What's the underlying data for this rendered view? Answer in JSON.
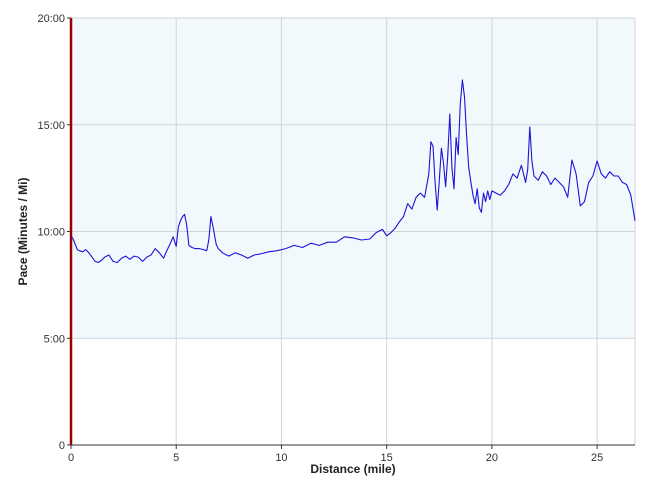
{
  "chart_data": {
    "type": "line",
    "title": "",
    "xlabel": "Distance (mile)",
    "ylabel": "Pace (Minutes / Mi)",
    "xlim": [
      0,
      26.8
    ],
    "ylim": [
      0,
      20
    ],
    "x_ticks": [
      0,
      5,
      10,
      15,
      20,
      25
    ],
    "x_tick_labels": [
      "0",
      "5",
      "10",
      "15",
      "20",
      "25"
    ],
    "y_ticks": [
      0,
      5,
      10,
      15,
      20
    ],
    "y_tick_labels": [
      "0",
      "5:00",
      "10:00",
      "15:00",
      "20:00"
    ],
    "grid": true,
    "shaded_band": [
      5,
      20
    ],
    "colors": {
      "line": "#1a14d6",
      "band": "#f2f9fd",
      "grid": "#cfd4d8",
      "marker": "#990000",
      "axis": "#333333"
    },
    "series": [
      {
        "name": "",
        "x": [
          0.0,
          0.1,
          0.2,
          0.3,
          0.4,
          0.55,
          0.7,
          0.85,
          1.0,
          1.15,
          1.3,
          1.45,
          1.6,
          1.8,
          2.0,
          2.2,
          2.4,
          2.6,
          2.8,
          3.0,
          3.2,
          3.4,
          3.6,
          3.8,
          4.0,
          4.2,
          4.4,
          4.55,
          4.7,
          4.85,
          5.0,
          5.1,
          5.2,
          5.3,
          5.4,
          5.5,
          5.6,
          5.75,
          5.9,
          6.1,
          6.3,
          6.45,
          6.55,
          6.65,
          6.75,
          6.9,
          7.0,
          7.2,
          7.5,
          7.8,
          8.1,
          8.4,
          8.7,
          9.0,
          9.4,
          9.8,
          10.2,
          10.6,
          11.0,
          11.4,
          11.8,
          12.2,
          12.6,
          13.0,
          13.4,
          13.8,
          14.2,
          14.5,
          14.8,
          15.0,
          15.2,
          15.4,
          15.6,
          15.8,
          16.0,
          16.2,
          16.4,
          16.6,
          16.8,
          17.0,
          17.1,
          17.2,
          17.3,
          17.4,
          17.5,
          17.6,
          17.7,
          17.8,
          17.9,
          18.0,
          18.1,
          18.2,
          18.3,
          18.4,
          18.5,
          18.6,
          18.7,
          18.8,
          18.9,
          19.0,
          19.1,
          19.2,
          19.3,
          19.4,
          19.5,
          19.6,
          19.7,
          19.8,
          19.9,
          20.0,
          20.2,
          20.4,
          20.6,
          20.8,
          21.0,
          21.2,
          21.4,
          21.6,
          21.7,
          21.8,
          21.9,
          22.0,
          22.2,
          22.4,
          22.6,
          22.8,
          23.0,
          23.2,
          23.4,
          23.6,
          23.8,
          24.0,
          24.2,
          24.4,
          24.6,
          24.8,
          25.0,
          25.2,
          25.4,
          25.6,
          25.8,
          26.0,
          26.2,
          26.4,
          26.6,
          26.8
        ],
        "y": [
          9.8,
          9.65,
          9.4,
          9.15,
          9.1,
          9.05,
          9.15,
          9.0,
          8.8,
          8.6,
          8.55,
          8.65,
          8.8,
          8.9,
          8.6,
          8.55,
          8.75,
          8.85,
          8.7,
          8.85,
          8.8,
          8.6,
          8.8,
          8.9,
          9.2,
          9.0,
          8.75,
          9.1,
          9.4,
          9.75,
          9.3,
          10.2,
          10.5,
          10.7,
          10.8,
          10.3,
          9.35,
          9.25,
          9.2,
          9.2,
          9.15,
          9.1,
          9.6,
          10.7,
          10.2,
          9.4,
          9.2,
          9.0,
          8.85,
          9.0,
          8.9,
          8.75,
          8.9,
          8.95,
          9.05,
          9.1,
          9.2,
          9.35,
          9.25,
          9.45,
          9.35,
          9.5,
          9.5,
          9.75,
          9.7,
          9.6,
          9.65,
          9.95,
          10.1,
          9.8,
          9.95,
          10.15,
          10.45,
          10.7,
          11.3,
          11.05,
          11.6,
          11.8,
          11.6,
          12.7,
          14.2,
          14.0,
          12.3,
          11.0,
          12.4,
          13.9,
          13.2,
          12.1,
          13.5,
          15.5,
          13.0,
          12.0,
          14.4,
          13.6,
          16.0,
          17.1,
          16.3,
          14.5,
          13.0,
          12.3,
          11.7,
          11.3,
          12.0,
          11.1,
          10.9,
          11.8,
          11.4,
          11.9,
          11.5,
          11.9,
          11.8,
          11.7,
          11.9,
          12.2,
          12.7,
          12.5,
          13.1,
          12.3,
          12.9,
          14.9,
          13.3,
          12.6,
          12.4,
          12.8,
          12.6,
          12.2,
          12.5,
          12.3,
          12.1,
          11.6,
          13.35,
          12.7,
          11.2,
          11.4,
          12.3,
          12.6,
          13.3,
          12.7,
          12.5,
          12.8,
          12.6,
          12.6,
          12.3,
          12.2,
          11.7,
          10.5
        ]
      }
    ]
  }
}
